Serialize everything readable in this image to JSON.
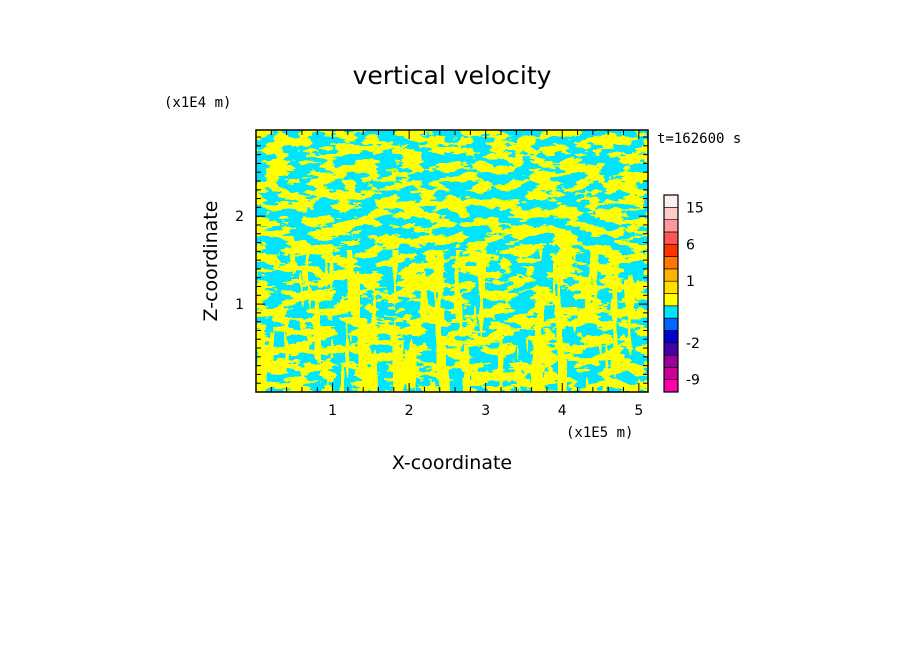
{
  "chart_data": {
    "type": "heatmap",
    "title": "vertical velocity",
    "xlabel": "X-coordinate",
    "ylabel": "Z-coordinate",
    "x_scale_label": "(x1E5 m)",
    "y_scale_label": "(x1E4 m)",
    "time_label": "t=162600 s",
    "xlim": [
      0,
      5.12
    ],
    "ylim": [
      0,
      2.98
    ],
    "x_ticks": [
      1,
      2,
      3,
      4,
      5
    ],
    "x_tick_labels": [
      "1",
      "2",
      "3",
      "4",
      "5"
    ],
    "y_ticks": [
      1,
      2
    ],
    "y_tick_labels": [
      "1",
      "2"
    ],
    "field_colors": {
      "positive": "#ffff00",
      "negative": "#00e5ff"
    },
    "colorbar": {
      "levels": [
        -12,
        -9,
        -6,
        -4,
        -2,
        -1,
        -0.5,
        0,
        0.5,
        1,
        2,
        4,
        6,
        9,
        12,
        15,
        18
      ],
      "tick_labels": [
        "15",
        "6",
        "1",
        "-2",
        "-9"
      ],
      "tick_values": [
        15,
        6,
        1,
        -2,
        -9
      ],
      "colors": [
        "#ff00aa",
        "#cc0099",
        "#990099",
        "#4400aa",
        "#0000cc",
        "#0066ff",
        "#00e5ff",
        "#ffff00",
        "#ffe000",
        "#ffb300",
        "#ff7700",
        "#ff3300",
        "#ff5555",
        "#ff9999",
        "#ffcccc",
        "#ffeeee"
      ]
    }
  }
}
